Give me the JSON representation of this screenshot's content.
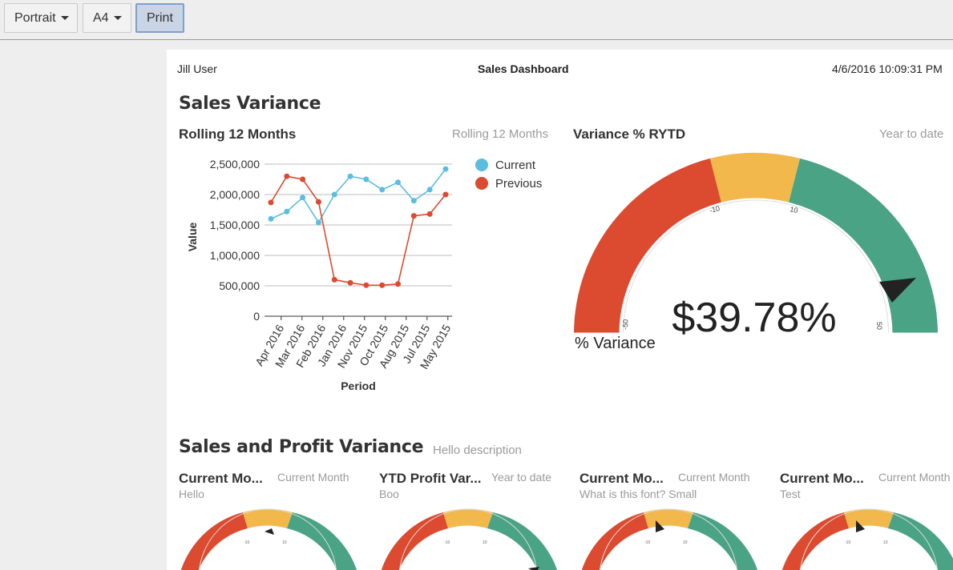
{
  "toolbar": {
    "orientation": "Portrait",
    "paper": "A4",
    "print": "Print"
  },
  "header": {
    "user": "Jill User",
    "title": "Sales Dashboard",
    "datetime": "4/6/2016 10:09:31 PM"
  },
  "sections": {
    "sales_variance": "Sales Variance",
    "sales_profit": "Sales and Profit Variance",
    "sales_profit_desc": "Hello description"
  },
  "rolling": {
    "title": "Rolling 12 Months",
    "subtitle": "Rolling 12 Months",
    "ylabel": "Value",
    "xlabel": "Period",
    "legend_current": "Current",
    "legend_previous": "Previous",
    "yticks": [
      "2,500,000",
      "2,000,000",
      "1,500,000",
      "1,000,000",
      "500,000",
      "0"
    ],
    "xticks": [
      "Apr 2016",
      "Mar 2016",
      "Feb 2016",
      "Jan 2016",
      "Nov 2015",
      "Oct 2015",
      "Aug 2015",
      "Jul 2015",
      "May 2015"
    ]
  },
  "gauge_main": {
    "title": "Variance % RYTD",
    "subtitle": "Year to date",
    "value_text": "$39.78%",
    "unit_label": "% Variance",
    "ticks": [
      "-50",
      "-10",
      "10",
      "50"
    ]
  },
  "small_gauges": [
    {
      "title": "Current Mo...",
      "subtitle": "Current Month",
      "desc": "Hello"
    },
    {
      "title": "YTD Profit Var...",
      "subtitle": "Year to date",
      "desc": "Boo"
    },
    {
      "title": "Current Mo...",
      "subtitle": "Current Month",
      "desc": "What is this font? Small"
    },
    {
      "title": "Current Mo...",
      "subtitle": "Current Month",
      "desc": "Test"
    }
  ],
  "colors": {
    "current": "#5bbde0",
    "previous": "#dc4a2f",
    "gauge_red": "#dc4a2f",
    "gauge_yellow": "#f2b84b",
    "gauge_green": "#4aa384"
  },
  "chart_data": {
    "type": "line",
    "title": "Rolling 12 Months",
    "xlabel": "Period",
    "ylabel": "Value",
    "ylim": [
      0,
      2500000
    ],
    "grid": true,
    "legend": "top-right",
    "x": [
      1,
      2,
      3,
      4,
      5,
      6,
      7,
      8,
      9,
      10,
      11,
      12
    ],
    "series": [
      {
        "name": "Current",
        "values": [
          1600000,
          1720000,
          1950000,
          1540000,
          2000000,
          2300000,
          2250000,
          2080000,
          2200000,
          1900000,
          2080000,
          2420000
        ]
      },
      {
        "name": "Previous",
        "values": [
          1870000,
          2300000,
          2250000,
          1880000,
          600000,
          550000,
          510000,
          510000,
          530000,
          1650000,
          1680000,
          2000000
        ]
      }
    ]
  }
}
